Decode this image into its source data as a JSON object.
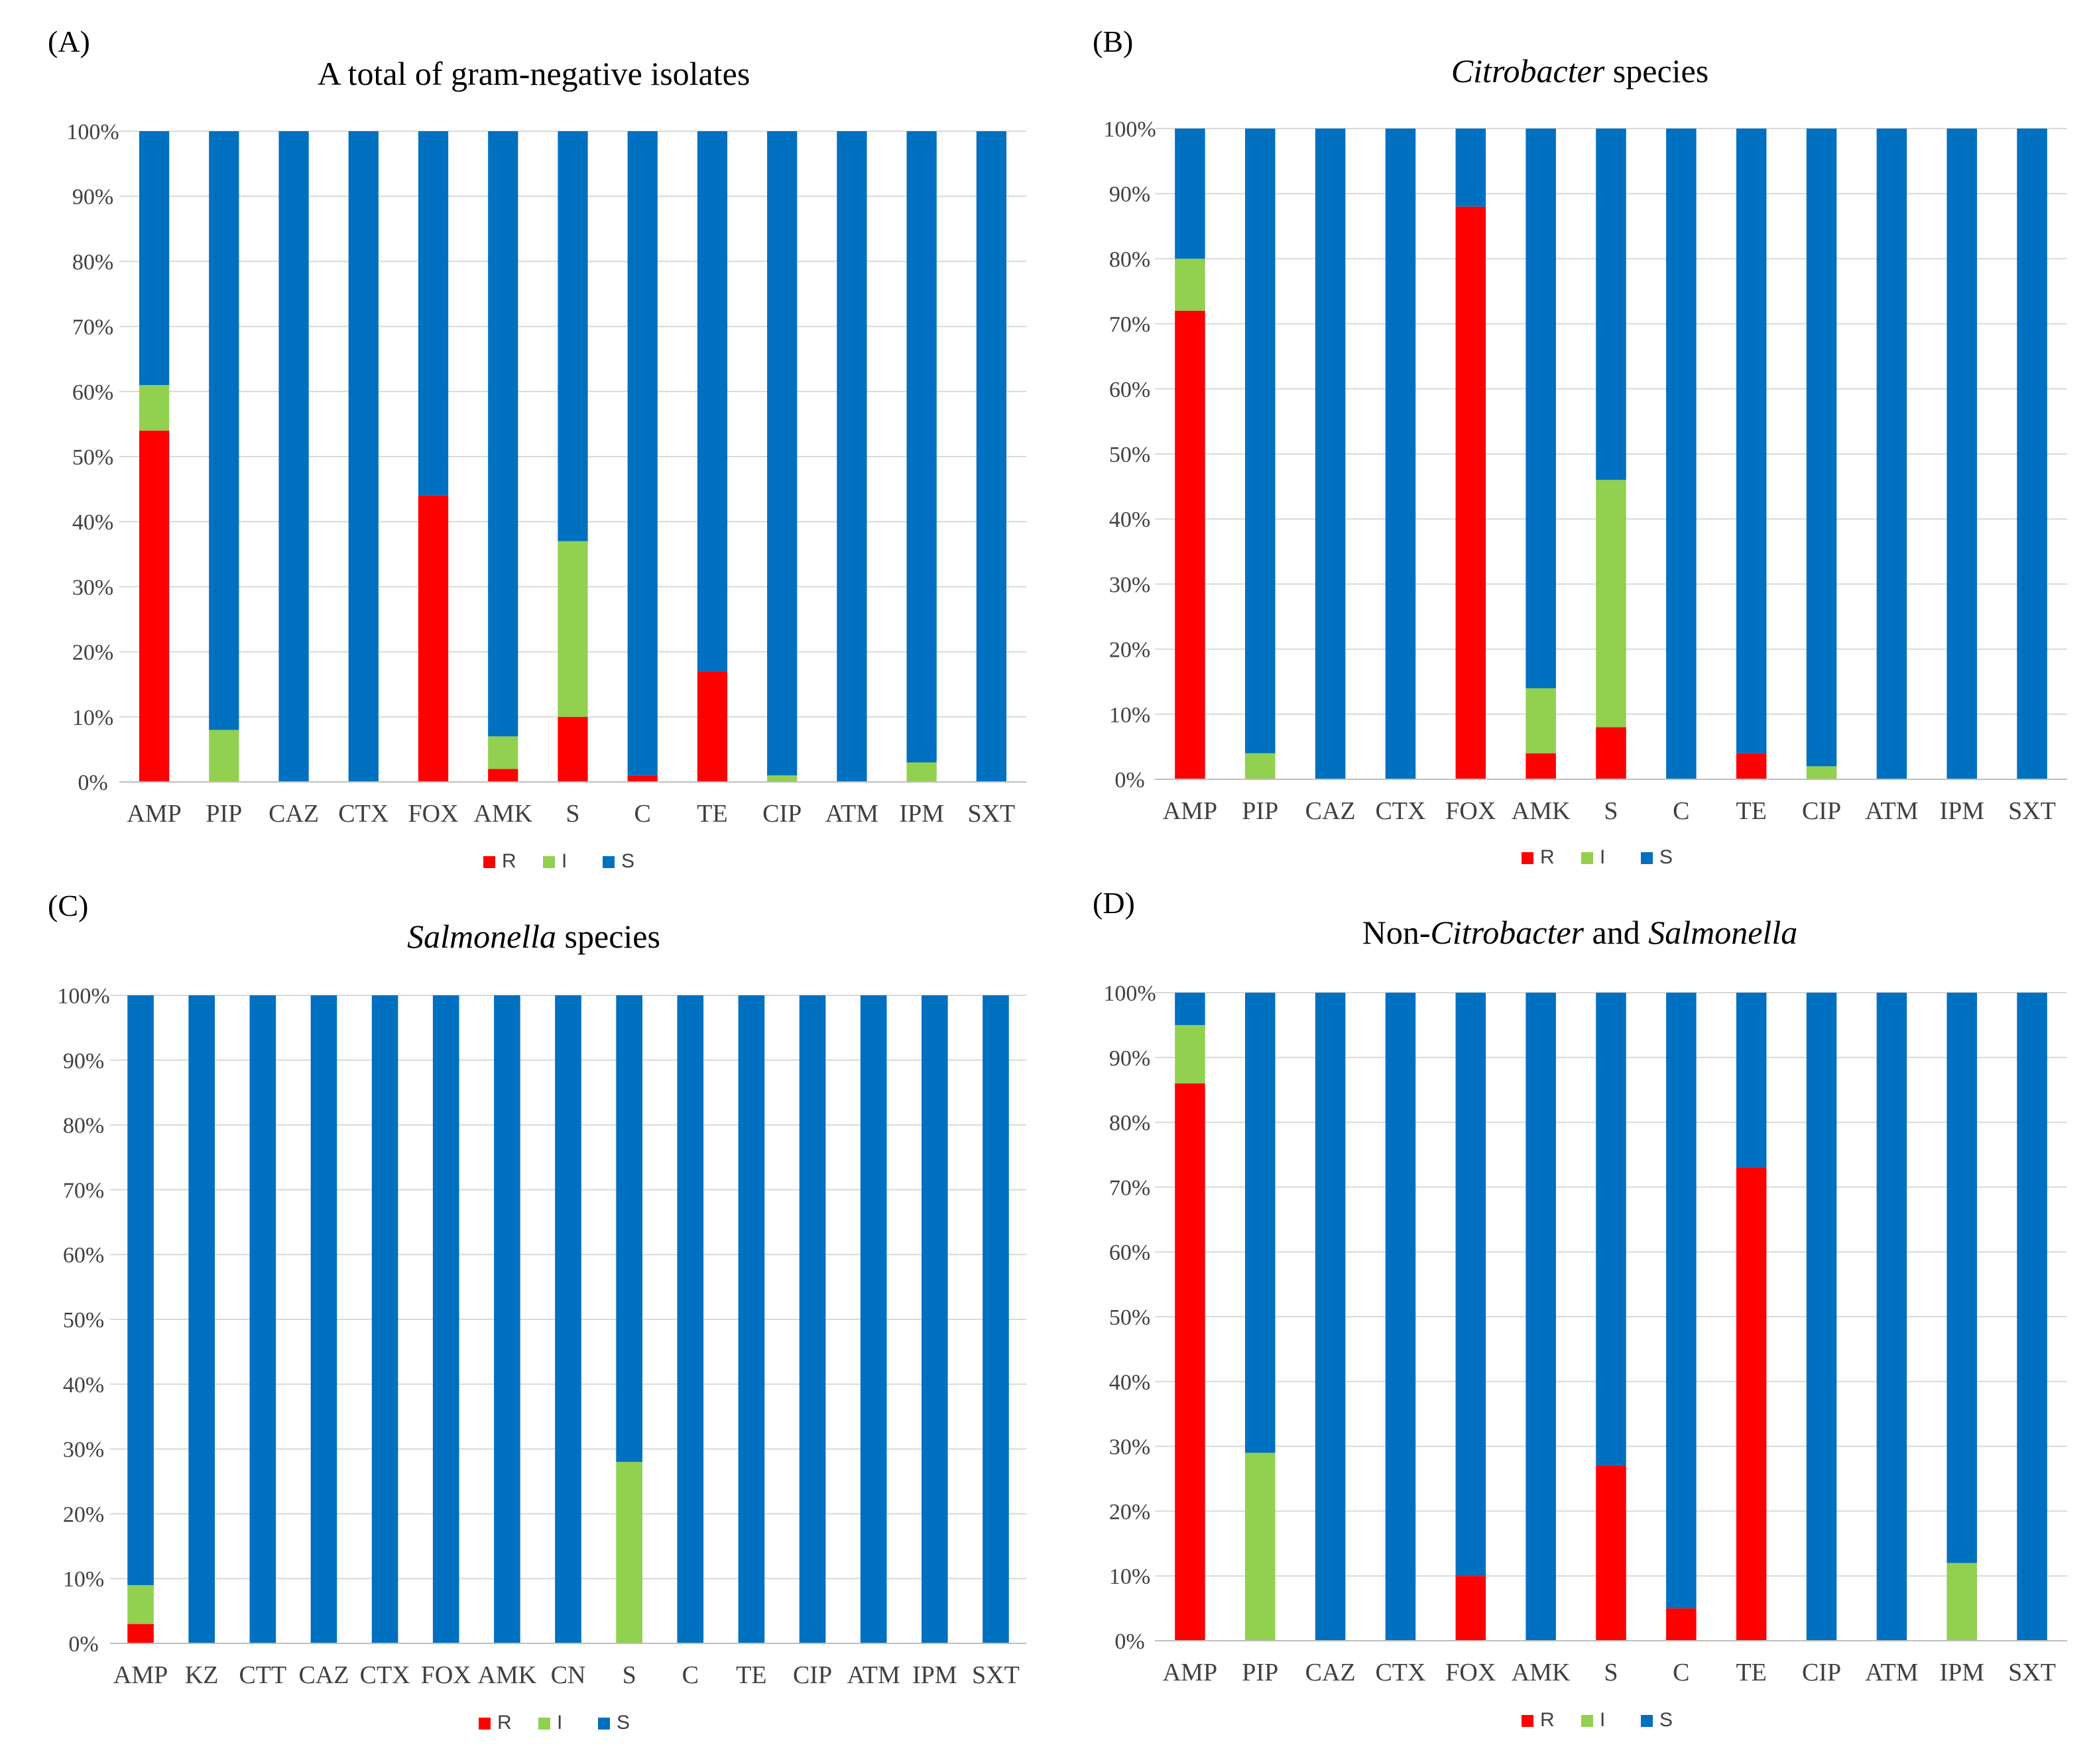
{
  "colors": {
    "R": "#ff0000",
    "I": "#92d050",
    "S": "#0070c0",
    "grid": "#d9d9d9",
    "axis": "#bfbfbf",
    "text": "#000000",
    "tick": "#404040"
  },
  "chart_data": [
    {
      "panel_label": "(A)",
      "type": "bar",
      "stacked": true,
      "title": "A total of gram-negative isolates",
      "title_parts": [
        {
          "text": "A total of gram-negative isolates",
          "italic": false
        }
      ],
      "categories": [
        "AMP",
        "PIP",
        "CAZ",
        "CTX",
        "FOX",
        "AMK",
        "S",
        "C",
        "TE",
        "CIP",
        "ATM",
        "IPM",
        "SXT"
      ],
      "series": [
        {
          "name": "R",
          "values": [
            54,
            0,
            0,
            0,
            44,
            2,
            10,
            1,
            17,
            0,
            0,
            0,
            0
          ]
        },
        {
          "name": "I",
          "values": [
            7,
            8,
            0,
            0,
            0,
            5,
            27,
            0,
            0,
            1,
            0,
            3,
            0
          ]
        },
        {
          "name": "S",
          "values": [
            39,
            92,
            100,
            100,
            56,
            93,
            63,
            99,
            83,
            99,
            100,
            97,
            100
          ]
        }
      ],
      "ylim": [
        0,
        100
      ],
      "yticks": [
        "0%",
        "10%",
        "20%",
        "30%",
        "40%",
        "50%",
        "60%",
        "70%",
        "80%",
        "90%",
        "100%"
      ],
      "xlabel": "",
      "ylabel": "",
      "legend": [
        "R",
        "I",
        "S"
      ],
      "legend_position": "bottom",
      "grid": true
    },
    {
      "panel_label": "(B)",
      "type": "bar",
      "stacked": true,
      "title": "Citrobacter species",
      "title_parts": [
        {
          "text": "Citrobacter",
          "italic": true
        },
        {
          "text": " species",
          "italic": false
        }
      ],
      "categories": [
        "AMP",
        "PIP",
        "CAZ",
        "CTX",
        "FOX",
        "AMK",
        "S",
        "C",
        "TE",
        "CIP",
        "ATM",
        "IPM",
        "SXT"
      ],
      "series": [
        {
          "name": "R",
          "values": [
            72,
            0,
            0,
            0,
            88,
            4,
            8,
            0,
            4,
            0,
            0,
            0,
            0
          ]
        },
        {
          "name": "I",
          "values": [
            8,
            4,
            0,
            0,
            0,
            10,
            38,
            0,
            0,
            2,
            0,
            0,
            0
          ]
        },
        {
          "name": "S",
          "values": [
            20,
            96,
            100,
            100,
            12,
            86,
            54,
            100,
            96,
            98,
            100,
            100,
            100
          ]
        }
      ],
      "ylim": [
        0,
        100
      ],
      "yticks": [
        "0%",
        "10%",
        "20%",
        "30%",
        "40%",
        "50%",
        "60%",
        "70%",
        "80%",
        "90%",
        "100%"
      ],
      "xlabel": "",
      "ylabel": "",
      "legend": [
        "R",
        "I",
        "S"
      ],
      "legend_position": "bottom",
      "grid": true
    },
    {
      "panel_label": "(C)",
      "type": "bar",
      "stacked": true,
      "title": "Salmonella species",
      "title_parts": [
        {
          "text": "Salmonella",
          "italic": true
        },
        {
          "text": " species",
          "italic": false
        }
      ],
      "categories": [
        "AMP",
        "KZ",
        "CTT",
        "CAZ",
        "CTX",
        "FOX",
        "AMK",
        "CN",
        "S",
        "C",
        "TE",
        "CIP",
        "ATM",
        "IPM",
        "SXT"
      ],
      "series": [
        {
          "name": "R",
          "values": [
            3,
            0,
            0,
            0,
            0,
            0,
            0,
            0,
            0,
            0,
            0,
            0,
            0,
            0,
            0
          ]
        },
        {
          "name": "I",
          "values": [
            6,
            0,
            0,
            0,
            0,
            0,
            0,
            0,
            28,
            0,
            0,
            0,
            0,
            0,
            0
          ]
        },
        {
          "name": "S",
          "values": [
            91,
            100,
            100,
            100,
            100,
            100,
            100,
            100,
            72,
            100,
            100,
            100,
            100,
            100,
            100
          ]
        }
      ],
      "ylim": [
        0,
        100
      ],
      "yticks": [
        "0%",
        "10%",
        "20%",
        "30%",
        "40%",
        "50%",
        "60%",
        "70%",
        "80%",
        "90%",
        "100%"
      ],
      "xlabel": "",
      "ylabel": "",
      "legend": [
        "R",
        "I",
        "S"
      ],
      "legend_position": "bottom",
      "grid": true
    },
    {
      "panel_label": "(D)",
      "type": "bar",
      "stacked": true,
      "title": "Non-Citrobacter and Salmonella",
      "title_parts": [
        {
          "text": "Non-",
          "italic": false
        },
        {
          "text": "Citrobacter",
          "italic": true
        },
        {
          "text": " and ",
          "italic": false
        },
        {
          "text": "Salmonella",
          "italic": true
        }
      ],
      "categories": [
        "AMP",
        "PIP",
        "CAZ",
        "CTX",
        "FOX",
        "AMK",
        "S",
        "C",
        "TE",
        "CIP",
        "ATM",
        "IPM",
        "SXT"
      ],
      "series": [
        {
          "name": "R",
          "values": [
            86,
            0,
            0,
            0,
            10,
            0,
            27,
            5,
            73,
            0,
            0,
            0,
            0
          ]
        },
        {
          "name": "I",
          "values": [
            9,
            29,
            0,
            0,
            0,
            0,
            0,
            0,
            0,
            0,
            0,
            12,
            0
          ]
        },
        {
          "name": "S",
          "values": [
            5,
            71,
            100,
            100,
            90,
            100,
            73,
            95,
            27,
            100,
            100,
            88,
            100
          ]
        }
      ],
      "ylim": [
        0,
        100
      ],
      "yticks": [
        "0%",
        "10%",
        "20%",
        "30%",
        "40%",
        "50%",
        "60%",
        "70%",
        "80%",
        "90%",
        "100%"
      ],
      "xlabel": "",
      "ylabel": "",
      "legend": [
        "R",
        "I",
        "S"
      ],
      "legend_position": "bottom",
      "grid": true
    }
  ]
}
